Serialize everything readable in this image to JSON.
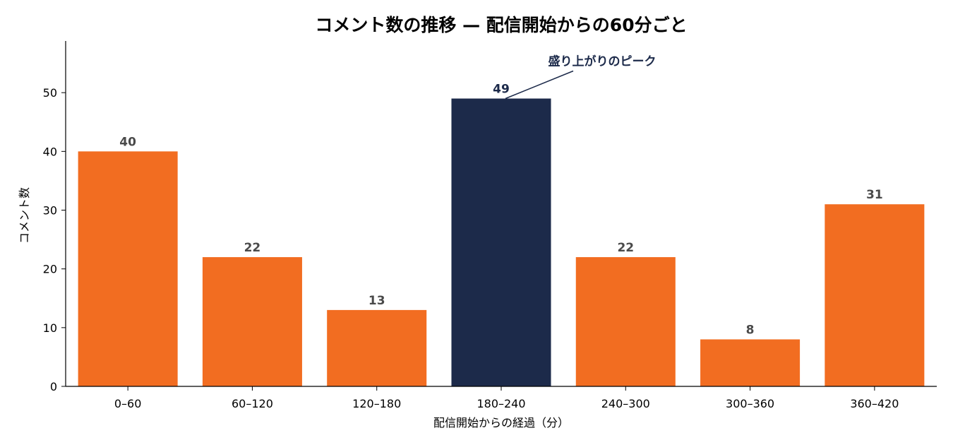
{
  "chart_data": {
    "type": "bar",
    "title": "コメント数の推移 — 配信開始からの60分ごと",
    "xlabel": "配信開始からの経過（分）",
    "ylabel": "コメント数",
    "categories": [
      "0–60",
      "60–120",
      "120–180",
      "180–240",
      "240–300",
      "300–360",
      "360–420"
    ],
    "values": [
      40,
      22,
      13,
      49,
      22,
      8,
      31
    ],
    "value_labels": [
      "40",
      "22",
      "13",
      "49",
      "22",
      "8",
      "31"
    ],
    "ylim": [
      0,
      58.8
    ],
    "yticks": [
      0,
      10,
      20,
      30,
      40,
      50
    ],
    "ytick_labels": [
      "0",
      "10",
      "20",
      "30",
      "40",
      "50"
    ],
    "grid": false,
    "highlight_index": 3,
    "annotation": {
      "text": "盛り上がりのピーク",
      "target_category": "180–240",
      "target_value": 49
    },
    "colors": {
      "bar": "#f26d21",
      "highlight": "#1c2a4a",
      "value_label": "#4a4a4a",
      "axis": "#000000"
    }
  }
}
